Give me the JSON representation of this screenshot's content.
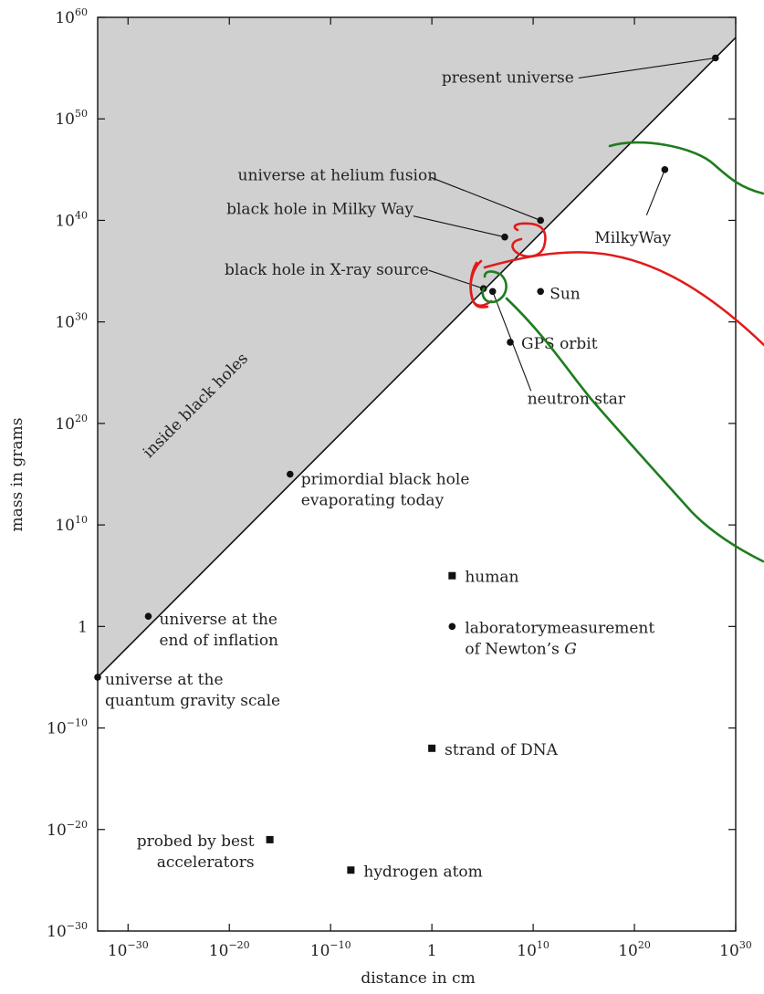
{
  "chart_data": {
    "type": "scatter",
    "title": "",
    "xlabel": "distance in cm",
    "ylabel": "mass in grams",
    "x_scale": "log",
    "y_scale": "log",
    "xlim": [
      1e-33,
      1e+30
    ],
    "ylim": [
      1e-30,
      1e+60
    ],
    "x_ticks": [
      {
        "value": 1e-30,
        "base": "10",
        "exp": "−30"
      },
      {
        "value": 1e-20,
        "base": "10",
        "exp": "−20"
      },
      {
        "value": 1e-10,
        "base": "10",
        "exp": "−10"
      },
      {
        "value": 1,
        "base": "1",
        "exp": ""
      },
      {
        "value": 10000000000.0,
        "base": "10",
        "exp": "10"
      },
      {
        "value": 1e+20,
        "base": "10",
        "exp": "20"
      },
      {
        "value": 1e+30,
        "base": "10",
        "exp": "30"
      }
    ],
    "y_ticks": [
      {
        "value": 1e-30,
        "base": "10",
        "exp": "−30"
      },
      {
        "value": 1e-20,
        "base": "10",
        "exp": "−20"
      },
      {
        "value": 1e-10,
        "base": "10",
        "exp": "−10"
      },
      {
        "value": 1,
        "base": "1",
        "exp": ""
      },
      {
        "value": 10000000000.0,
        "base": "10",
        "exp": "10"
      },
      {
        "value": 1e+20,
        "base": "10",
        "exp": "20"
      },
      {
        "value": 1e+30,
        "base": "10",
        "exp": "30"
      },
      {
        "value": 1e+40,
        "base": "10",
        "exp": "40"
      },
      {
        "value": 1e+50,
        "base": "10",
        "exp": "50"
      },
      {
        "value": 1e+60,
        "base": "10",
        "exp": "60"
      }
    ],
    "boundary_line": {
      "from": [
        1e-33,
        1e-05
      ],
      "to": [
        1e+30,
        1e+58
      ]
    },
    "region_label": "inside black holes",
    "points": [
      {
        "name": "present-universe",
        "marker": "circle",
        "x": 1e+28,
        "y": 1e+56,
        "label": [
          "present universe"
        ]
      },
      {
        "name": "universe-at-helium-fusion",
        "marker": "circle",
        "x": 100000000000.0,
        "y": 1e+40,
        "label": [
          "universe at helium fusion"
        ]
      },
      {
        "name": "black-hole-milky-way",
        "marker": "circle",
        "x": 1000000000.0,
        "y": 1e+38,
        "label": [
          "black hole in Milky Way"
        ]
      },
      {
        "name": "black-hole-x-ray-source",
        "marker": "circle",
        "x": 1000000.0,
        "y": 1e+34,
        "label": [
          "black hole in X-ray source"
        ]
      },
      {
        "name": "neutron-star",
        "marker": "circle",
        "x": 1000000.0,
        "y": 1e+33,
        "label": [
          "neutron star"
        ]
      },
      {
        "name": "sun",
        "marker": "circle",
        "x": 100000000000.0,
        "y": 1e+33,
        "label": [
          "Sun"
        ]
      },
      {
        "name": "milky-way",
        "marker": "circle",
        "x": 1e+23,
        "y": 1e+45,
        "label": [
          "MilkyWay"
        ]
      },
      {
        "name": "gps-orbit",
        "marker": "circle",
        "x": 1000000000.0,
        "y": 1e+28,
        "label": [
          "GPS orbit"
        ]
      },
      {
        "name": "primordial-black-hole",
        "marker": "circle",
        "x": 1e-14,
        "y": 1000000000000000.0,
        "label": [
          "primordial black hole",
          "evaporating today"
        ]
      },
      {
        "name": "universe-end-of-inflation",
        "marker": "circle",
        "x": 1e-28,
        "y": 10.0,
        "label": [
          "universe at the",
          "end of inflation"
        ]
      },
      {
        "name": "universe-quantum-gravity",
        "marker": "circle",
        "x": 1e-33,
        "y": 1e-05,
        "label": [
          "universe at the",
          "quantum gravity scale"
        ]
      },
      {
        "name": "human",
        "marker": "square",
        "x": 100.0,
        "y": 100000.0,
        "label": [
          "human"
        ]
      },
      {
        "name": "newtons-g-measurement",
        "marker": "circle",
        "x": 100.0,
        "y": 1.0,
        "label": [
          "laboratorymeasurement",
          "of Newton’s G"
        ]
      },
      {
        "name": "strand-of-dna",
        "marker": "square",
        "x": 1.0,
        "y": 1e-12,
        "label": [
          "strand of DNA"
        ]
      },
      {
        "name": "best-accelerators",
        "marker": "square",
        "x": 1e-16,
        "y": 1e-21,
        "label": [
          "probed by best",
          "accelerators"
        ]
      },
      {
        "name": "hydrogen-atom",
        "marker": "square",
        "x": 1e-08,
        "y": 1e-24,
        "label": [
          "hydrogen atom"
        ]
      }
    ],
    "annotation_strokes": [
      {
        "name": "milky-way-bracket",
        "color": "#1e7d1e"
      },
      {
        "name": "black-hole-milky-way-circle",
        "color": "#e01b1b"
      },
      {
        "name": "x-ray-bracket",
        "color": "#e01b1b"
      },
      {
        "name": "x-ray-source-circle",
        "color": "#e01b1b"
      },
      {
        "name": "neutron-star-circle",
        "color": "#1e7d1e"
      }
    ]
  }
}
